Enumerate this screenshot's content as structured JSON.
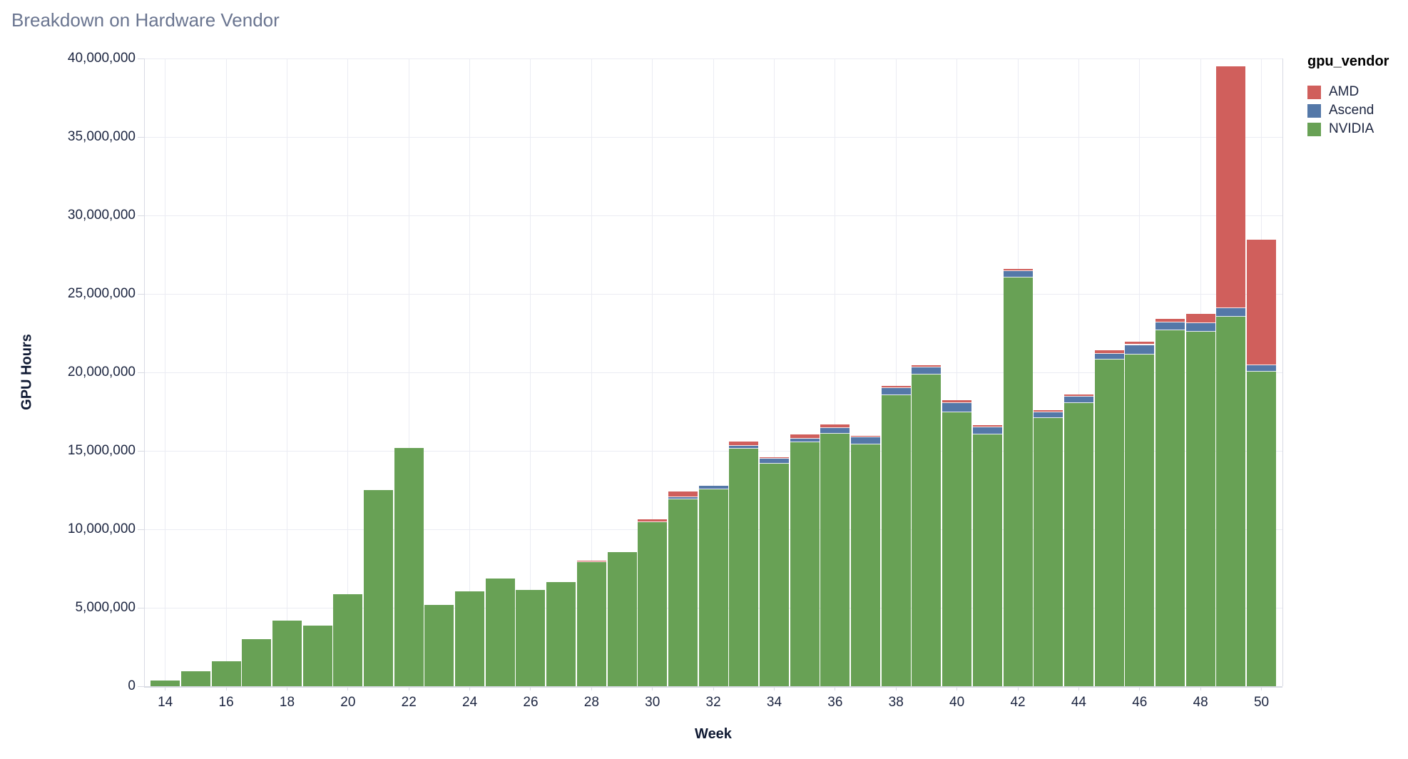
{
  "chart_data": {
    "type": "bar",
    "stacked": true,
    "title": "Breakdown on Hardware Vendor",
    "xlabel": "Week",
    "ylabel": "GPU Hours",
    "legend_title": "gpu_vendor",
    "legend_position": "right",
    "grid": true,
    "x": [
      14,
      15,
      16,
      17,
      18,
      19,
      20,
      21,
      22,
      23,
      24,
      25,
      26,
      27,
      28,
      29,
      30,
      31,
      32,
      33,
      34,
      35,
      36,
      37,
      38,
      39,
      40,
      41,
      42,
      43,
      44,
      45,
      46,
      47,
      48,
      49,
      50
    ],
    "series": [
      {
        "name": "NVIDIA",
        "color": "#68a155",
        "values": [
          360000,
          950000,
          1600000,
          3000000,
          4200000,
          3850000,
          5850000,
          12500000,
          15200000,
          5200000,
          6050000,
          6850000,
          6150000,
          6650000,
          7900000,
          8550000,
          10450000,
          11900000,
          12550000,
          15150000,
          14200000,
          15550000,
          16100000,
          15400000,
          18550000,
          19850000,
          17450000,
          16050000,
          26050000,
          17100000,
          18050000,
          20800000,
          21150000,
          22700000,
          22600000,
          23550000,
          20050000
        ]
      },
      {
        "name": "Ascend",
        "color": "#5478a8",
        "values": [
          0,
          0,
          0,
          0,
          0,
          0,
          0,
          0,
          0,
          0,
          0,
          0,
          0,
          0,
          0,
          0,
          0,
          150000,
          220000,
          150000,
          300000,
          230000,
          350000,
          450000,
          450000,
          450000,
          600000,
          450000,
          400000,
          350000,
          400000,
          400000,
          600000,
          500000,
          550000,
          550000,
          400000
        ]
      },
      {
        "name": "AMD",
        "color": "#d05f5c",
        "values": [
          0,
          0,
          0,
          0,
          0,
          0,
          0,
          0,
          0,
          0,
          0,
          0,
          0,
          0,
          100000,
          0,
          200000,
          350000,
          0,
          300000,
          100000,
          280000,
          250000,
          100000,
          150000,
          150000,
          200000,
          150000,
          150000,
          150000,
          150000,
          200000,
          200000,
          200000,
          600000,
          15400000,
          8000000
        ]
      }
    ],
    "stack_order_bottom_to_top": [
      "NVIDIA",
      "Ascend",
      "AMD"
    ],
    "legend_order": [
      "AMD",
      "Ascend",
      "NVIDIA"
    ],
    "ylim": [
      0,
      40000000
    ],
    "ytick_values": [
      0,
      5000000,
      10000000,
      15000000,
      20000000,
      25000000,
      30000000,
      35000000,
      40000000
    ],
    "ytick_labels": [
      "0",
      "5,000,000",
      "10,000,000",
      "15,000,000",
      "20,000,000",
      "25,000,000",
      "30,000,000",
      "35,000,000",
      "40,000,000"
    ],
    "xtick_values": [
      14,
      16,
      18,
      20,
      22,
      24,
      26,
      28,
      30,
      32,
      34,
      36,
      38,
      40,
      42,
      44,
      46,
      48,
      50
    ],
    "xtick_labels": [
      "14",
      "16",
      "18",
      "20",
      "22",
      "24",
      "26",
      "28",
      "30",
      "32",
      "34",
      "36",
      "38",
      "40",
      "42",
      "44",
      "46",
      "48",
      "50"
    ]
  },
  "colors": {
    "background": "#ffffff",
    "title_text": "#6a7590",
    "tick_text": "#1c2540",
    "axis_title_text": "#101a33",
    "gridline": "#ebecf3",
    "axis_line": "#d8dae3",
    "tick_mark": "#d8dae3"
  }
}
